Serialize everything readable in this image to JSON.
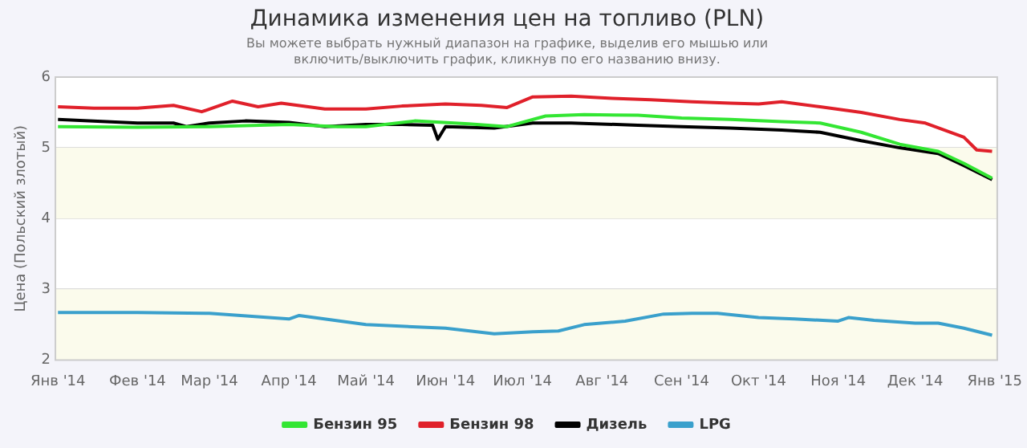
{
  "chart_data": {
    "type": "line",
    "title": "Динамика изменения цен на топливо (PLN)",
    "subtitle": "Вы можете выбрать нужный диапазон на графике, выделив его мышью или\nвключить/выключить график, кликнув по его названию внизу.",
    "ylabel": "Цена (Польский злотый)",
    "xlim": [
      "2013-12-31",
      "2015-01-02"
    ],
    "xticks": [
      {
        "value": "2014-01-01",
        "label": "Янв '14"
      },
      {
        "value": "2014-02-01",
        "label": "Фев '14"
      },
      {
        "value": "2014-03-01",
        "label": "Мар '14"
      },
      {
        "value": "2014-04-01",
        "label": "Апр '14"
      },
      {
        "value": "2014-05-01",
        "label": "Май '14"
      },
      {
        "value": "2014-06-01",
        "label": "Июн '14"
      },
      {
        "value": "2014-07-01",
        "label": "Июл '14"
      },
      {
        "value": "2014-08-01",
        "label": "Авг '14"
      },
      {
        "value": "2014-09-01",
        "label": "Сен '14"
      },
      {
        "value": "2014-10-01",
        "label": "Окт '14"
      },
      {
        "value": "2014-11-01",
        "label": "Ноя '14"
      },
      {
        "value": "2014-12-01",
        "label": "Дек '14"
      },
      {
        "value": "2015-01-01",
        "label": "Янв '15"
      }
    ],
    "ylim": [
      2,
      6
    ],
    "yticks": [
      2,
      3,
      4,
      5,
      6
    ],
    "grid": "y",
    "legend": "bottom",
    "marker": "none",
    "line_style": "solid",
    "bands": [
      {
        "axis": "y",
        "from": 2,
        "to": 3,
        "color": "#fbfbec"
      },
      {
        "axis": "y",
        "from": 4,
        "to": 5,
        "color": "#fbfbec"
      }
    ],
    "series": [
      {
        "name": "Бензин 95",
        "color": "#33e633",
        "x": [
          "2014-01-01",
          "2014-02-01",
          "2014-03-01",
          "2014-04-01",
          "2014-04-20",
          "2014-05-01",
          "2014-05-20",
          "2014-06-10",
          "2014-06-25",
          "2014-07-10",
          "2014-07-25",
          "2014-08-15",
          "2014-09-01",
          "2014-09-20",
          "2014-10-10",
          "2014-10-25",
          "2014-11-10",
          "2014-11-25",
          "2014-12-10",
          "2014-12-20",
          "2014-12-31"
        ],
        "values": [
          5.3,
          5.29,
          5.3,
          5.33,
          5.3,
          5.3,
          5.38,
          5.34,
          5.3,
          5.45,
          5.47,
          5.46,
          5.42,
          5.4,
          5.37,
          5.35,
          5.22,
          5.05,
          4.95,
          4.78,
          4.57
        ]
      },
      {
        "name": "Бензин 98",
        "color": "#e0202a",
        "x": [
          "2014-01-01",
          "2014-01-15",
          "2014-02-01",
          "2014-02-15",
          "2014-02-26",
          "2014-03-10",
          "2014-03-20",
          "2014-03-29",
          "2014-04-15",
          "2014-05-01",
          "2014-05-15",
          "2014-06-01",
          "2014-06-15",
          "2014-06-25",
          "2014-07-05",
          "2014-07-20",
          "2014-08-05",
          "2014-08-20",
          "2014-09-05",
          "2014-09-20",
          "2014-10-01",
          "2014-10-10",
          "2014-10-25",
          "2014-11-10",
          "2014-11-25",
          "2014-12-05",
          "2014-12-20",
          "2014-12-25",
          "2014-12-31"
        ],
        "values": [
          5.58,
          5.56,
          5.56,
          5.6,
          5.51,
          5.66,
          5.58,
          5.63,
          5.55,
          5.55,
          5.59,
          5.62,
          5.6,
          5.57,
          5.72,
          5.73,
          5.7,
          5.68,
          5.65,
          5.63,
          5.62,
          5.65,
          5.58,
          5.5,
          5.4,
          5.35,
          5.15,
          4.97,
          4.95
        ]
      },
      {
        "name": "Дизель",
        "color": "#000000",
        "x": [
          "2014-01-01",
          "2014-02-01",
          "2014-02-15",
          "2014-02-20",
          "2014-03-01",
          "2014-03-15",
          "2014-04-01",
          "2014-04-15",
          "2014-05-01",
          "2014-05-15",
          "2014-05-27",
          "2014-05-29",
          "2014-06-01",
          "2014-06-20",
          "2014-07-05",
          "2014-07-20",
          "2014-08-15",
          "2014-09-01",
          "2014-09-20",
          "2014-10-10",
          "2014-10-25",
          "2014-11-10",
          "2014-11-25",
          "2014-12-10",
          "2014-12-20",
          "2014-12-31"
        ],
        "values": [
          5.4,
          5.35,
          5.35,
          5.3,
          5.35,
          5.38,
          5.36,
          5.3,
          5.33,
          5.33,
          5.32,
          5.12,
          5.3,
          5.28,
          5.35,
          5.35,
          5.32,
          5.3,
          5.28,
          5.25,
          5.22,
          5.1,
          5.0,
          4.92,
          4.75,
          4.55
        ]
      },
      {
        "name": "LPG",
        "color": "#3aa0cc",
        "x": [
          "2014-01-01",
          "2014-02-01",
          "2014-03-01",
          "2014-04-01",
          "2014-04-05",
          "2014-05-01",
          "2014-06-01",
          "2014-06-20",
          "2014-07-05",
          "2014-07-15",
          "2014-07-25",
          "2014-08-10",
          "2014-08-25",
          "2014-09-05",
          "2014-09-15",
          "2014-10-01",
          "2014-10-15",
          "2014-11-01",
          "2014-11-05",
          "2014-11-15",
          "2014-12-01",
          "2014-12-10",
          "2014-12-20",
          "2014-12-31"
        ],
        "values": [
          2.67,
          2.67,
          2.66,
          2.58,
          2.63,
          2.5,
          2.45,
          2.37,
          2.4,
          2.41,
          2.5,
          2.55,
          2.65,
          2.66,
          2.66,
          2.6,
          2.58,
          2.55,
          2.6,
          2.56,
          2.52,
          2.52,
          2.45,
          2.35
        ]
      }
    ]
  }
}
